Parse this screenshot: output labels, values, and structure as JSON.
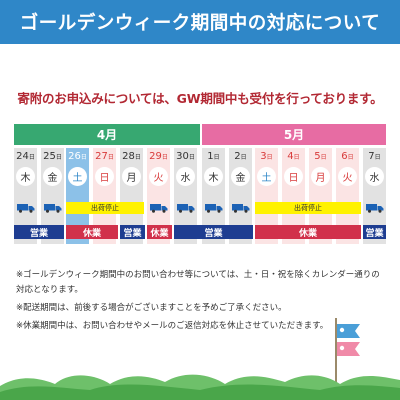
{
  "title": "ゴールデンウィーク期間中の対応について",
  "subtitle": "寄附のお申込みについては、GW期間中も受付を行っております。",
  "calendar": {
    "months": [
      {
        "label": "4月"
      },
      {
        "label": "5月"
      }
    ],
    "days": [
      {
        "date": "24",
        "unit": "日",
        "dow": "木",
        "type": "normal"
      },
      {
        "date": "25",
        "unit": "日",
        "dow": "金",
        "type": "normal"
      },
      {
        "date": "26",
        "unit": "日",
        "dow": "土",
        "type": "sat"
      },
      {
        "date": "27",
        "unit": "日",
        "dow": "日",
        "type": "holiday"
      },
      {
        "date": "28",
        "unit": "日",
        "dow": "月",
        "type": "normal"
      },
      {
        "date": "29",
        "unit": "日",
        "dow": "火",
        "type": "holiday"
      },
      {
        "date": "30",
        "unit": "日",
        "dow": "水",
        "type": "normal"
      },
      {
        "date": "1",
        "unit": "日",
        "dow": "木",
        "type": "normal"
      },
      {
        "date": "2",
        "unit": "日",
        "dow": "金",
        "type": "normal"
      },
      {
        "date": "3",
        "unit": "日",
        "dow": "土",
        "type": "sat-may"
      },
      {
        "date": "4",
        "unit": "日",
        "dow": "日",
        "type": "holiday"
      },
      {
        "date": "5",
        "unit": "日",
        "dow": "月",
        "type": "holiday"
      },
      {
        "date": "6",
        "unit": "日",
        "dow": "火",
        "type": "holiday"
      },
      {
        "date": "7",
        "unit": "日",
        "dow": "水",
        "type": "normal"
      }
    ],
    "ship_stop_label": "出荷停止",
    "open_label": "営業",
    "closed_label": "休業",
    "colors": {
      "april": "#37a871",
      "may": "#e76ca3",
      "open": "#1e3d91",
      "closed": "#d1314b",
      "stop": "#fff200",
      "truck": "#1c62b5"
    }
  },
  "notes": [
    "※ゴールデンウィーク期間中のお問い合わせ等については、土・日・祝を除くカレンダー通りの対応となります。",
    "※配送期間は、前後する場合がございますことを予めご了承ください。",
    "※休業期間中は、お問い合わせやメールのご返信対応を休止させていただきます。"
  ]
}
